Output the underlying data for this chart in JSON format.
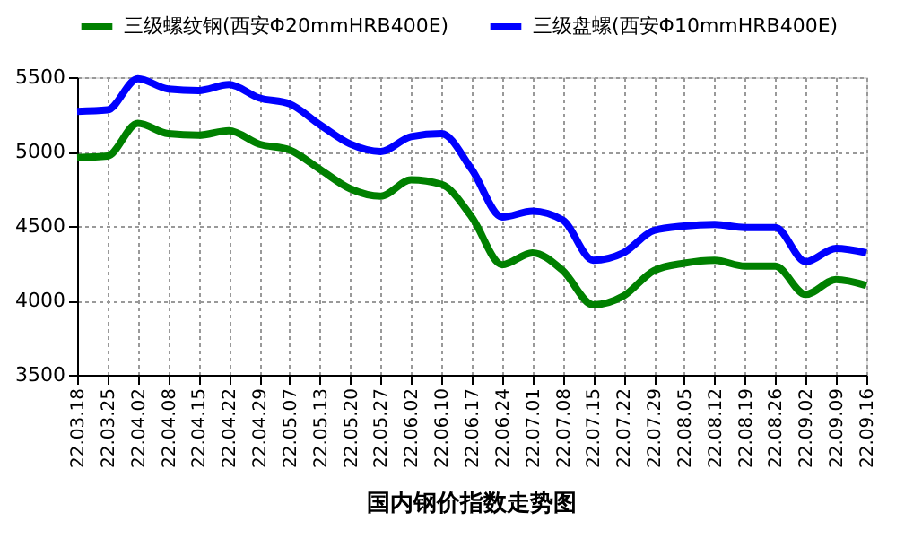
{
  "chart_data": {
    "type": "line",
    "title": "国内钢价指数走势图",
    "categories": [
      "22.03.18",
      "22.03.25",
      "22.04.02",
      "22.04.08",
      "22.04.15",
      "22.04.22",
      "22.04.29",
      "22.05.07",
      "22.05.13",
      "22.05.20",
      "22.05.27",
      "22.06.02",
      "22.06.10",
      "22.06.17",
      "22.06.24",
      "22.07.01",
      "22.07.08",
      "22.07.15",
      "22.07.22",
      "22.07.29",
      "22.08.05",
      "22.08.12",
      "22.08.19",
      "22.08.26",
      "22.09.02",
      "22.09.09",
      "22.09.16"
    ],
    "series": [
      {
        "name": "三级螺纹钢(西安Φ20mmHRB400E)",
        "color": "#008000",
        "values": [
          4960,
          4970,
          5190,
          5120,
          5110,
          5140,
          5050,
          5010,
          4880,
          4750,
          4700,
          4810,
          4780,
          4560,
          4240,
          4320,
          4200,
          3970,
          4030,
          4200,
          4250,
          4270,
          4230,
          4230,
          4040,
          4140,
          4100
        ]
      },
      {
        "name": "三级盘螺(西安Φ10mmHRB400E)",
        "color": "#0000ff",
        "values": [
          5270,
          5280,
          5490,
          5420,
          5410,
          5450,
          5360,
          5320,
          5180,
          5050,
          5000,
          5100,
          5120,
          4880,
          4560,
          4600,
          4540,
          4270,
          4320,
          4470,
          4500,
          4510,
          4490,
          4490,
          4260,
          4350,
          4320
        ]
      }
    ],
    "ylim": [
      3500,
      5500
    ],
    "yticks": [
      3500,
      4000,
      4500,
      5000,
      5500
    ],
    "grid": true,
    "legend": "top",
    "marker": "none",
    "line_style": "solid"
  }
}
